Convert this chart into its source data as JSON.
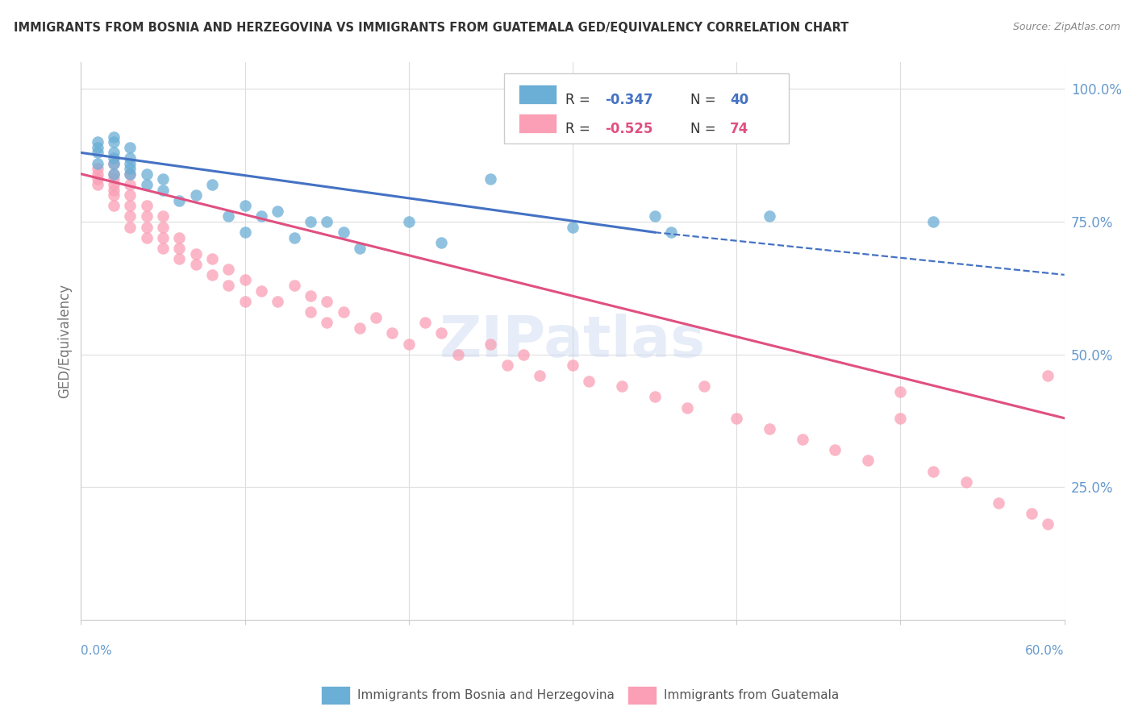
{
  "title": "IMMIGRANTS FROM BOSNIA AND HERZEGOVINA VS IMMIGRANTS FROM GUATEMALA GED/EQUIVALENCY CORRELATION CHART",
  "source": "Source: ZipAtlas.com",
  "ylabel": "GED/Equivalency",
  "yticks": [
    0.0,
    0.25,
    0.5,
    0.75,
    1.0
  ],
  "ytick_labels": [
    "",
    "25.0%",
    "50.0%",
    "75.0%",
    "100.0%"
  ],
  "xlim": [
    0.0,
    0.6
  ],
  "ylim": [
    0.0,
    1.05
  ],
  "watermark": "ZIPatlas",
  "bosnia_color": "#6baed6",
  "guatemala_color": "#fa9fb5",
  "bosnia_line_color": "#4472c4",
  "guatemala_line_color": "#e05080",
  "bosnia_scatter": {
    "x": [
      0.01,
      0.01,
      0.01,
      0.01,
      0.02,
      0.02,
      0.02,
      0.02,
      0.02,
      0.02,
      0.03,
      0.03,
      0.03,
      0.03,
      0.03,
      0.04,
      0.04,
      0.05,
      0.05,
      0.06,
      0.07,
      0.08,
      0.09,
      0.1,
      0.1,
      0.11,
      0.12,
      0.13,
      0.14,
      0.15,
      0.16,
      0.17,
      0.2,
      0.22,
      0.25,
      0.3,
      0.35,
      0.36,
      0.42,
      0.52
    ],
    "y": [
      0.86,
      0.88,
      0.89,
      0.9,
      0.84,
      0.86,
      0.87,
      0.88,
      0.9,
      0.91,
      0.84,
      0.85,
      0.86,
      0.87,
      0.89,
      0.82,
      0.84,
      0.81,
      0.83,
      0.79,
      0.8,
      0.82,
      0.76,
      0.78,
      0.73,
      0.76,
      0.77,
      0.72,
      0.75,
      0.75,
      0.73,
      0.7,
      0.75,
      0.71,
      0.83,
      0.74,
      0.76,
      0.73,
      0.76,
      0.75
    ]
  },
  "guatemala_scatter": {
    "x": [
      0.01,
      0.01,
      0.01,
      0.01,
      0.02,
      0.02,
      0.02,
      0.02,
      0.02,
      0.02,
      0.02,
      0.03,
      0.03,
      0.03,
      0.03,
      0.03,
      0.03,
      0.04,
      0.04,
      0.04,
      0.04,
      0.05,
      0.05,
      0.05,
      0.05,
      0.06,
      0.06,
      0.06,
      0.07,
      0.07,
      0.08,
      0.08,
      0.09,
      0.09,
      0.1,
      0.1,
      0.11,
      0.12,
      0.13,
      0.14,
      0.14,
      0.15,
      0.15,
      0.16,
      0.17,
      0.18,
      0.19,
      0.2,
      0.21,
      0.22,
      0.23,
      0.25,
      0.26,
      0.27,
      0.28,
      0.3,
      0.31,
      0.33,
      0.35,
      0.37,
      0.38,
      0.4,
      0.42,
      0.44,
      0.46,
      0.48,
      0.5,
      0.5,
      0.52,
      0.54,
      0.56,
      0.58,
      0.59,
      0.59
    ],
    "y": [
      0.82,
      0.83,
      0.84,
      0.85,
      0.78,
      0.8,
      0.81,
      0.82,
      0.83,
      0.84,
      0.86,
      0.74,
      0.76,
      0.78,
      0.8,
      0.82,
      0.84,
      0.72,
      0.74,
      0.76,
      0.78,
      0.7,
      0.72,
      0.74,
      0.76,
      0.68,
      0.7,
      0.72,
      0.67,
      0.69,
      0.65,
      0.68,
      0.63,
      0.66,
      0.6,
      0.64,
      0.62,
      0.6,
      0.63,
      0.58,
      0.61,
      0.56,
      0.6,
      0.58,
      0.55,
      0.57,
      0.54,
      0.52,
      0.56,
      0.54,
      0.5,
      0.52,
      0.48,
      0.5,
      0.46,
      0.48,
      0.45,
      0.44,
      0.42,
      0.4,
      0.44,
      0.38,
      0.36,
      0.34,
      0.32,
      0.3,
      0.43,
      0.38,
      0.28,
      0.26,
      0.22,
      0.2,
      0.46,
      0.18
    ]
  },
  "bosnia_line": {
    "x": [
      0.0,
      0.35
    ],
    "y": [
      0.88,
      0.73
    ]
  },
  "bosnia_line_dashed": {
    "x": [
      0.35,
      0.6
    ],
    "y": [
      0.73,
      0.65
    ]
  },
  "guatemala_line": {
    "x": [
      0.0,
      0.6
    ],
    "y": [
      0.84,
      0.38
    ]
  },
  "background_color": "#ffffff",
  "grid_color": "#dddddd",
  "title_color": "#333333",
  "tick_color": "#6699cc",
  "legend_items": [
    {
      "r": "-0.347",
      "n": "40",
      "color": "#4472c4",
      "swatch": "#6baed6"
    },
    {
      "r": "-0.525",
      "n": "74",
      "color": "#e05080",
      "swatch": "#fa9fb5"
    }
  ],
  "bottom_legend": [
    {
      "label": "Immigrants from Bosnia and Herzegovina",
      "color": "#6baed6"
    },
    {
      "label": "Immigrants from Guatemala",
      "color": "#fa9fb5"
    }
  ]
}
